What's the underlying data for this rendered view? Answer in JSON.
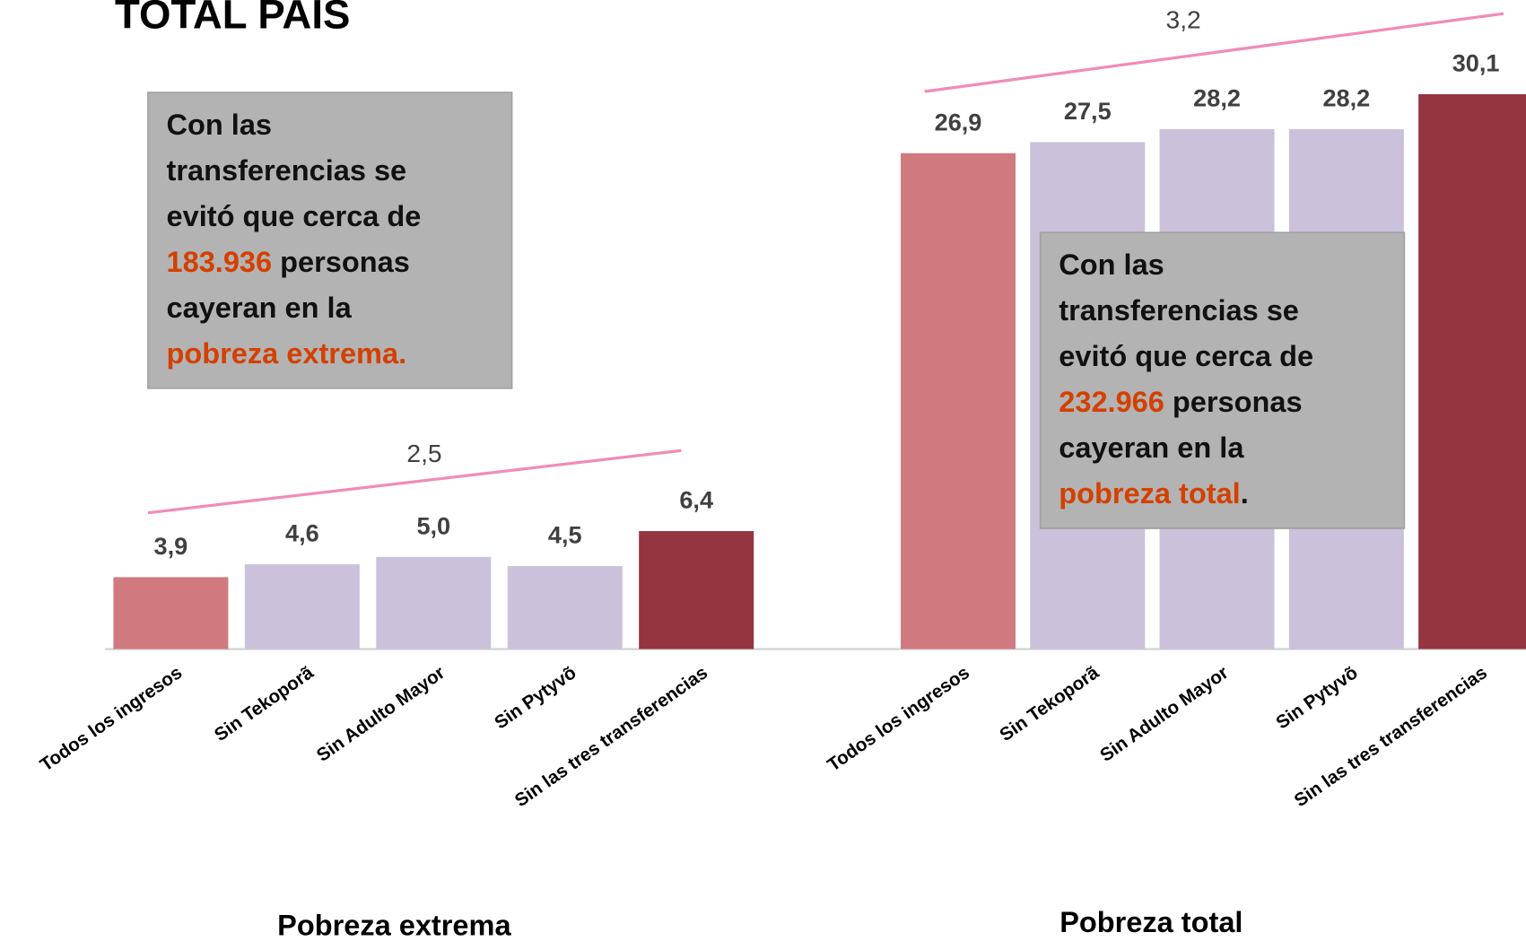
{
  "title": "TOTAL PAÍS",
  "chart_data": [
    {
      "type": "bar",
      "title": "Pobreza extrema",
      "categories": [
        "Todos los ingresos",
        "Sin Tekoporã",
        "Sin Adulto Mayor",
        "Sin Pytyvõ",
        "Sin las tres transferencias"
      ],
      "values": [
        3.9,
        4.6,
        5.0,
        4.5,
        6.4
      ],
      "value_labels": [
        "3,9",
        "4,6",
        "5,0",
        "4,5",
        "6,4"
      ],
      "colors": [
        "#d07a80",
        "#cbc1db",
        "#cbc1db",
        "#cbc1db",
        "#943540"
      ],
      "ylim": [
        0,
        35
      ],
      "annotation": "2,5",
      "line_color": "#f08cb8"
    },
    {
      "type": "bar",
      "title": "Pobreza total",
      "categories": [
        "Todos los ingresos",
        "Sin Tekoporã",
        "Sin Adulto Mayor",
        "Sin Pytyvõ",
        "Sin las tres transferencias"
      ],
      "values": [
        26.9,
        27.5,
        28.2,
        28.2,
        30.1
      ],
      "value_labels": [
        "26,9",
        "27,5",
        "28,2",
        "28,2",
        "30,1"
      ],
      "colors": [
        "#d07a80",
        "#cbc1db",
        "#cbc1db",
        "#cbc1db",
        "#943540"
      ],
      "ylim": [
        0,
        35
      ],
      "annotation": "3,2",
      "line_color": "#f08cb8"
    }
  ],
  "callouts": [
    {
      "lines": [
        [
          {
            "text": "Con las"
          }
        ],
        [
          {
            "text": "transferencias se"
          }
        ],
        [
          {
            "text": "evitó que cerca de"
          }
        ],
        [
          {
            "text": "183.936",
            "color": "#d44000"
          },
          {
            "text": " personas"
          }
        ],
        [
          {
            "text": "cayeran en la"
          }
        ],
        [
          {
            "text": "pobreza extrema.",
            "color": "#d44000"
          }
        ]
      ]
    },
    {
      "lines": [
        [
          {
            "text": "Con las"
          }
        ],
        [
          {
            "text": "transferencias se"
          }
        ],
        [
          {
            "text": "evitó que cerca de"
          }
        ],
        [
          {
            "text": "232.966",
            "color": "#d44000"
          },
          {
            "text": " personas"
          }
        ],
        [
          {
            "text": "cayeran en la"
          }
        ],
        [
          {
            "text": "pobreza total",
            "color": "#d44000"
          },
          {
            "text": "."
          }
        ]
      ]
    }
  ]
}
